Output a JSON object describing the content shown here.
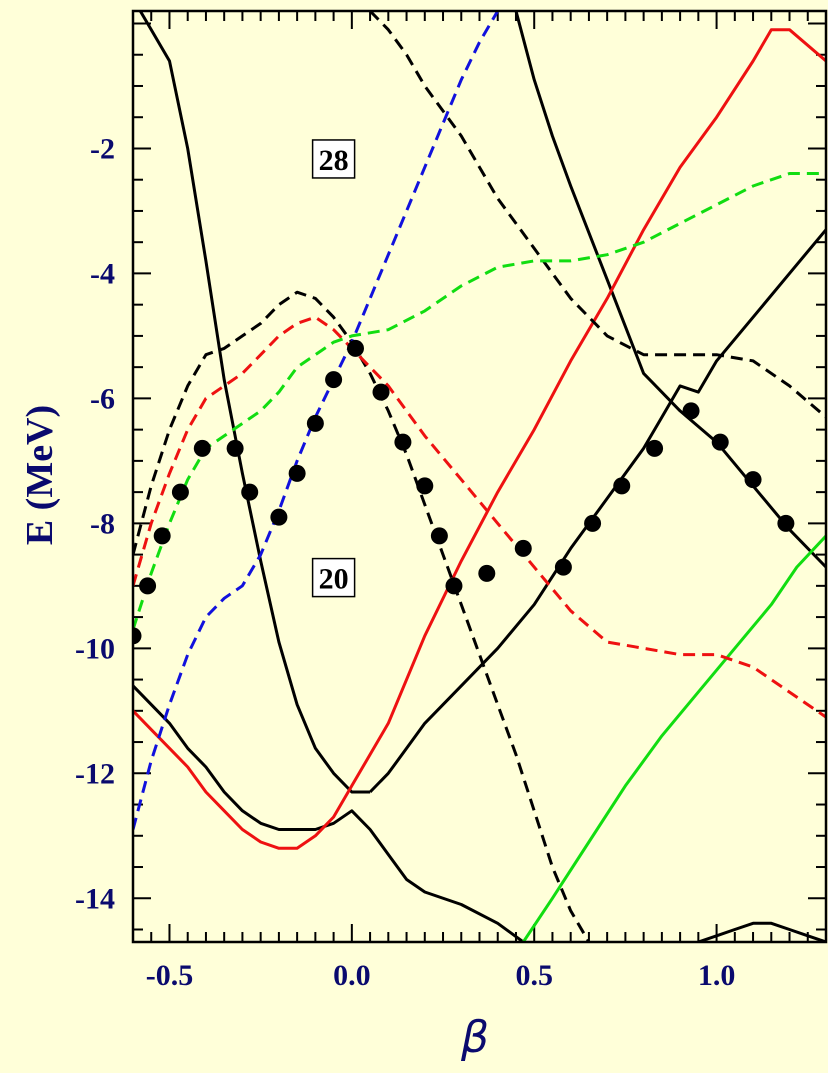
{
  "chart_data": {
    "type": "line",
    "xlabel": "β",
    "ylabel": "E (MeV)",
    "xlim": [
      -0.6,
      1.3
    ],
    "ylim": [
      -14.7,
      0.2
    ],
    "xticks": [
      -0.5,
      0.0,
      0.5,
      1.0
    ],
    "xtick_labels": [
      "-0.5",
      "0.0",
      "0.5",
      "1.0"
    ],
    "yticks": [
      -14,
      -12,
      -10,
      -8,
      -6,
      -4,
      -2
    ],
    "ytick_labels": [
      "-14",
      "-12",
      "-10",
      "-8",
      "-6",
      "-4",
      "-2"
    ],
    "grid": false,
    "legend": "none",
    "colors": {
      "background": "#ffffd9",
      "black": "#000000",
      "red": "#ee1111",
      "green": "#11dd11",
      "blue": "#1111dd",
      "text": "#0a0a6e"
    },
    "annotations": [
      {
        "text": "28",
        "x": -0.05,
        "y": -2.2
      },
      {
        "text": "20",
        "x": -0.05,
        "y": -8.9
      }
    ],
    "series": [
      {
        "color": "#000000",
        "style": "solid",
        "x": [
          -0.58,
          -0.5,
          -0.45,
          -0.4,
          -0.35,
          -0.3,
          -0.25,
          -0.2,
          -0.15,
          -0.1,
          -0.05,
          0.0,
          0.05
        ],
        "y": [
          0.2,
          -0.6,
          -2.0,
          -3.8,
          -5.7,
          -7.2,
          -8.6,
          -9.9,
          -10.9,
          -11.6,
          -12.0,
          -12.3,
          -12.3
        ]
      },
      {
        "color": "#000000",
        "style": "solid",
        "x": [
          0.05,
          0.1,
          0.15,
          0.2,
          0.3,
          0.4,
          0.5,
          0.6,
          0.7,
          0.8,
          0.85,
          0.9,
          0.95,
          1.0,
          1.1,
          1.2,
          1.3
        ],
        "y": [
          -12.3,
          -12.0,
          -11.6,
          -11.2,
          -10.6,
          -10.0,
          -9.3,
          -8.4,
          -7.6,
          -6.8,
          -6.3,
          -5.8,
          -5.9,
          -5.4,
          -4.7,
          -4.0,
          -3.3
        ]
      },
      {
        "color": "#000000",
        "style": "solid",
        "x": [
          -0.6,
          -0.5,
          -0.45,
          -0.4,
          -0.35,
          -0.3,
          -0.25,
          -0.2,
          -0.15,
          -0.1,
          -0.05,
          0.0,
          0.05,
          0.1,
          0.15,
          0.2,
          0.3,
          0.4,
          0.47
        ],
        "y": [
          -10.6,
          -11.2,
          -11.6,
          -11.9,
          -12.3,
          -12.6,
          -12.8,
          -12.9,
          -12.9,
          -12.9,
          -12.8,
          -12.6,
          -12.9,
          -13.3,
          -13.7,
          -13.9,
          -14.1,
          -14.4,
          -14.7
        ]
      },
      {
        "color": "#000000",
        "style": "solid",
        "x": [
          0.45,
          0.5,
          0.55,
          0.6,
          0.7,
          0.8,
          0.9,
          1.0,
          1.1,
          1.2,
          1.3
        ],
        "y": [
          0.2,
          -0.9,
          -1.8,
          -2.6,
          -4.1,
          -5.6,
          -6.2,
          -6.7,
          -7.4,
          -8.1,
          -8.7
        ]
      },
      {
        "color": "#000000",
        "style": "solid",
        "x": [
          0.95,
          1.0,
          1.05,
          1.1,
          1.15,
          1.2,
          1.25,
          1.3
        ],
        "y": [
          -14.7,
          -14.6,
          -14.5,
          -14.4,
          -14.4,
          -14.5,
          -14.6,
          -14.7
        ]
      },
      {
        "color": "#ee1111",
        "style": "solid",
        "x": [
          -0.6,
          -0.55,
          -0.5,
          -0.45,
          -0.4,
          -0.35,
          -0.3,
          -0.25,
          -0.2,
          -0.15,
          -0.1,
          -0.05,
          0.0,
          0.1,
          0.2,
          0.3,
          0.4,
          0.5,
          0.6,
          0.7,
          0.8,
          0.9,
          1.0,
          1.1,
          1.15,
          1.2,
          1.3
        ],
        "y": [
          -11.0,
          -11.3,
          -11.6,
          -11.9,
          -12.3,
          -12.6,
          -12.9,
          -13.1,
          -13.2,
          -13.2,
          -13.0,
          -12.7,
          -12.2,
          -11.2,
          -9.8,
          -8.6,
          -7.5,
          -6.5,
          -5.4,
          -4.4,
          -3.3,
          -2.3,
          -1.5,
          -0.6,
          -0.1,
          -0.1,
          -0.6
        ]
      },
      {
        "color": "#11dd11",
        "style": "solid",
        "x": [
          0.47,
          0.55,
          0.65,
          0.75,
          0.85,
          0.95,
          1.05,
          1.15,
          1.22,
          1.3
        ],
        "y": [
          -14.7,
          -14.0,
          -13.1,
          -12.2,
          -11.4,
          -10.7,
          -10.0,
          -9.3,
          -8.7,
          -8.2
        ]
      },
      {
        "color": "#000000",
        "style": "dashed",
        "x": [
          -0.6,
          -0.55,
          -0.5,
          -0.45,
          -0.4,
          -0.35,
          -0.3,
          -0.25,
          -0.2,
          -0.15,
          -0.1,
          -0.05,
          0.0,
          0.05,
          0.1,
          0.15,
          0.2,
          0.25,
          0.3,
          0.35,
          0.4,
          0.45,
          0.5,
          0.55,
          0.6,
          0.65
        ],
        "y": [
          -8.5,
          -7.4,
          -6.5,
          -5.8,
          -5.3,
          -5.2,
          -5.0,
          -4.8,
          -4.5,
          -4.3,
          -4.4,
          -4.7,
          -5.1,
          -5.6,
          -6.2,
          -6.9,
          -7.7,
          -8.5,
          -9.3,
          -10.1,
          -10.9,
          -11.7,
          -12.6,
          -13.5,
          -14.2,
          -14.7
        ]
      },
      {
        "color": "#000000",
        "style": "dashed",
        "x": [
          0.05,
          0.1,
          0.15,
          0.2,
          0.3,
          0.4,
          0.5,
          0.6,
          0.7,
          0.8,
          0.9,
          1.0,
          1.1,
          1.2,
          1.3
        ],
        "y": [
          0.2,
          -0.1,
          -0.5,
          -1.0,
          -1.8,
          -2.8,
          -3.6,
          -4.4,
          -5.0,
          -5.3,
          -5.3,
          -5.3,
          -5.4,
          -5.8,
          -6.3
        ]
      },
      {
        "color": "#ee1111",
        "style": "dashed",
        "x": [
          -0.6,
          -0.55,
          -0.5,
          -0.45,
          -0.4,
          -0.35,
          -0.3,
          -0.25,
          -0.2,
          -0.15,
          -0.1,
          -0.05,
          0.0,
          0.1,
          0.2,
          0.3,
          0.4,
          0.5,
          0.6,
          0.7,
          0.8,
          0.9,
          1.0,
          1.1,
          1.2,
          1.3
        ],
        "y": [
          -9.0,
          -8.0,
          -7.2,
          -6.5,
          -6.0,
          -5.8,
          -5.6,
          -5.3,
          -5.0,
          -4.8,
          -4.7,
          -4.9,
          -5.2,
          -5.8,
          -6.6,
          -7.3,
          -8.0,
          -8.7,
          -9.4,
          -9.9,
          -10.0,
          -10.1,
          -10.1,
          -10.3,
          -10.7,
          -11.1
        ]
      },
      {
        "color": "#11dd11",
        "style": "dashed",
        "x": [
          -0.6,
          -0.55,
          -0.5,
          -0.45,
          -0.4,
          -0.35,
          -0.3,
          -0.25,
          -0.2,
          -0.15,
          -0.1,
          -0.05,
          0.0,
          0.1,
          0.2,
          0.3,
          0.4,
          0.5,
          0.6,
          0.7,
          0.8,
          0.9,
          1.0,
          1.1,
          1.2,
          1.3
        ],
        "y": [
          -9.7,
          -8.8,
          -8.0,
          -7.3,
          -6.8,
          -6.6,
          -6.4,
          -6.2,
          -5.9,
          -5.5,
          -5.3,
          -5.1,
          -5.0,
          -4.9,
          -4.6,
          -4.2,
          -3.9,
          -3.8,
          -3.8,
          -3.7,
          -3.5,
          -3.2,
          -2.9,
          -2.6,
          -2.4,
          -2.4
        ]
      },
      {
        "color": "#1111dd",
        "style": "dashed",
        "x": [
          -0.6,
          -0.55,
          -0.5,
          -0.45,
          -0.4,
          -0.35,
          -0.3,
          -0.25,
          -0.2,
          -0.15,
          -0.1,
          -0.05,
          0.0,
          0.05,
          0.1,
          0.15,
          0.2,
          0.25,
          0.3,
          0.35,
          0.4,
          0.45
        ],
        "y": [
          -12.9,
          -11.8,
          -10.9,
          -10.1,
          -9.5,
          -9.2,
          -9.0,
          -8.5,
          -7.8,
          -7.0,
          -6.3,
          -5.7,
          -5.1,
          -4.4,
          -3.7,
          -3.0,
          -2.3,
          -1.6,
          -0.9,
          -0.3,
          0.2,
          0.5
        ]
      },
      {
        "color": "#000000",
        "style": "markers",
        "x": [
          -0.6,
          -0.56,
          -0.52,
          -0.47,
          -0.41,
          -0.32,
          -0.28,
          -0.2,
          -0.15,
          -0.1,
          -0.05,
          0.01,
          0.08,
          0.14,
          0.2,
          0.24,
          0.28,
          0.37,
          0.47,
          0.58,
          0.66,
          0.74,
          0.83,
          0.93,
          1.01,
          1.1,
          1.19
        ],
        "y": [
          -9.8,
          -9.0,
          -8.2,
          -7.5,
          -6.8,
          -6.8,
          -7.5,
          -7.9,
          -7.2,
          -6.4,
          -5.7,
          -5.2,
          -5.9,
          -6.7,
          -7.4,
          -8.2,
          -9.0,
          -8.8,
          -8.4,
          -8.7,
          -8.0,
          -7.4,
          -6.8,
          -6.2,
          -6.7,
          -7.3,
          -8.0
        ]
      }
    ]
  }
}
